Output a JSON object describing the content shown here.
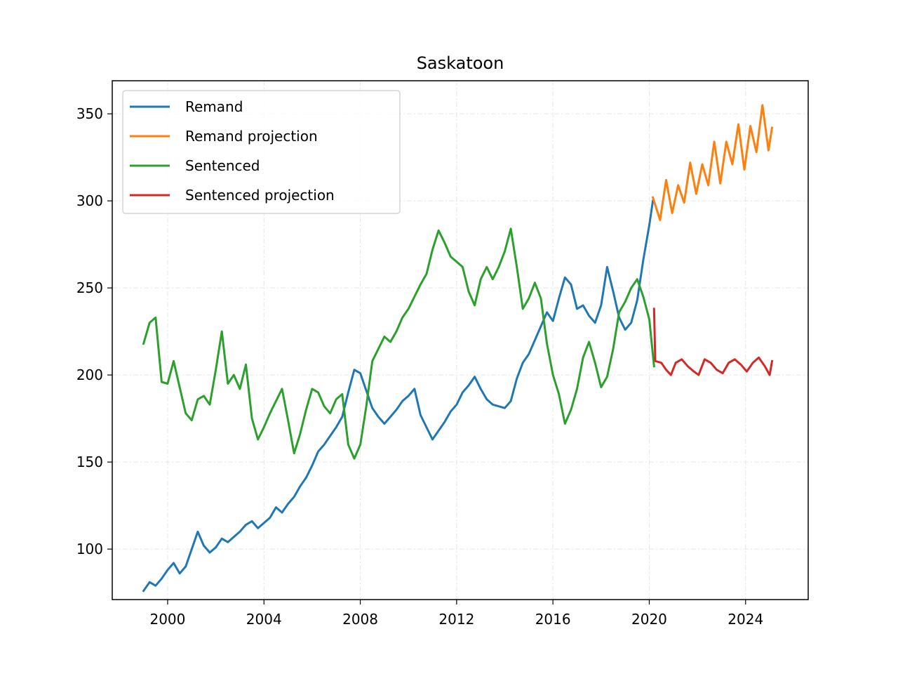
{
  "chart_data": {
    "type": "line",
    "title": "Saskatoon",
    "xlabel": "",
    "ylabel": "",
    "xlim": [
      1997.7,
      2026.6
    ],
    "ylim": [
      71.0,
      369.0
    ],
    "x_ticks": [
      2000,
      2004,
      2008,
      2012,
      2016,
      2020,
      2024
    ],
    "y_ticks": [
      100,
      150,
      200,
      250,
      300,
      350
    ],
    "grid": true,
    "legend_position": "top-left",
    "series": [
      {
        "name": "Remand",
        "color": "#1f77b4",
        "points": [
          [
            1999.0,
            76
          ],
          [
            1999.25,
            81
          ],
          [
            1999.5,
            79
          ],
          [
            1999.75,
            83
          ],
          [
            2000.0,
            88
          ],
          [
            2000.25,
            92
          ],
          [
            2000.5,
            86
          ],
          [
            2000.75,
            90
          ],
          [
            2001.0,
            100
          ],
          [
            2001.25,
            110
          ],
          [
            2001.5,
            102
          ],
          [
            2001.75,
            98
          ],
          [
            2002.0,
            101
          ],
          [
            2002.25,
            106
          ],
          [
            2002.5,
            104
          ],
          [
            2002.75,
            107
          ],
          [
            2003.0,
            110
          ],
          [
            2003.25,
            114
          ],
          [
            2003.5,
            116
          ],
          [
            2003.75,
            112
          ],
          [
            2004.0,
            115
          ],
          [
            2004.25,
            118
          ],
          [
            2004.5,
            124
          ],
          [
            2004.75,
            121
          ],
          [
            2005.0,
            126
          ],
          [
            2005.25,
            130
          ],
          [
            2005.5,
            136
          ],
          [
            2005.75,
            141
          ],
          [
            2006.0,
            148
          ],
          [
            2006.25,
            156
          ],
          [
            2006.5,
            160
          ],
          [
            2006.75,
            165
          ],
          [
            2007.0,
            170
          ],
          [
            2007.25,
            176
          ],
          [
            2007.5,
            190
          ],
          [
            2007.75,
            203
          ],
          [
            2008.0,
            201
          ],
          [
            2008.25,
            191
          ],
          [
            2008.5,
            181
          ],
          [
            2008.75,
            176
          ],
          [
            2009.0,
            172
          ],
          [
            2009.25,
            176
          ],
          [
            2009.5,
            180
          ],
          [
            2009.75,
            185
          ],
          [
            2010.0,
            188
          ],
          [
            2010.25,
            192
          ],
          [
            2010.5,
            177
          ],
          [
            2010.75,
            170
          ],
          [
            2011.0,
            163
          ],
          [
            2011.25,
            168
          ],
          [
            2011.5,
            173
          ],
          [
            2011.75,
            179
          ],
          [
            2012.0,
            183
          ],
          [
            2012.25,
            190
          ],
          [
            2012.5,
            194
          ],
          [
            2012.75,
            199
          ],
          [
            2013.0,
            192
          ],
          [
            2013.25,
            186
          ],
          [
            2013.5,
            183
          ],
          [
            2013.75,
            182
          ],
          [
            2014.0,
            181
          ],
          [
            2014.25,
            185
          ],
          [
            2014.5,
            198
          ],
          [
            2014.75,
            207
          ],
          [
            2015.0,
            212
          ],
          [
            2015.25,
            220
          ],
          [
            2015.5,
            228
          ],
          [
            2015.75,
            236
          ],
          [
            2016.0,
            231
          ],
          [
            2016.25,
            244
          ],
          [
            2016.5,
            256
          ],
          [
            2016.75,
            252
          ],
          [
            2017.0,
            238
          ],
          [
            2017.25,
            240
          ],
          [
            2017.5,
            234
          ],
          [
            2017.75,
            230
          ],
          [
            2018.0,
            240
          ],
          [
            2018.25,
            262
          ],
          [
            2018.5,
            248
          ],
          [
            2018.75,
            233
          ],
          [
            2019.0,
            226
          ],
          [
            2019.25,
            230
          ],
          [
            2019.5,
            243
          ],
          [
            2019.75,
            266
          ],
          [
            2020.0,
            286
          ],
          [
            2020.15,
            300
          ]
        ]
      },
      {
        "name": "Remand projection",
        "color": "#ff7f0e",
        "points": [
          [
            2020.15,
            302
          ],
          [
            2020.45,
            289
          ],
          [
            2020.7,
            312
          ],
          [
            2020.95,
            293
          ],
          [
            2021.2,
            309
          ],
          [
            2021.45,
            299
          ],
          [
            2021.7,
            322
          ],
          [
            2021.95,
            304
          ],
          [
            2022.2,
            321
          ],
          [
            2022.45,
            309
          ],
          [
            2022.7,
            334
          ],
          [
            2022.95,
            310
          ],
          [
            2023.2,
            334
          ],
          [
            2023.45,
            321
          ],
          [
            2023.7,
            344
          ],
          [
            2023.95,
            318
          ],
          [
            2024.2,
            343
          ],
          [
            2024.45,
            328
          ],
          [
            2024.7,
            355
          ],
          [
            2024.95,
            329
          ],
          [
            2025.1,
            342
          ]
        ]
      },
      {
        "name": "Sentenced",
        "color": "#2ca02c",
        "points": [
          [
            1999.0,
            218
          ],
          [
            1999.25,
            230
          ],
          [
            1999.5,
            233
          ],
          [
            1999.75,
            196
          ],
          [
            2000.0,
            195
          ],
          [
            2000.25,
            208
          ],
          [
            2000.5,
            193
          ],
          [
            2000.75,
            178
          ],
          [
            2001.0,
            174
          ],
          [
            2001.25,
            186
          ],
          [
            2001.5,
            188
          ],
          [
            2001.75,
            183
          ],
          [
            2002.0,
            203
          ],
          [
            2002.25,
            225
          ],
          [
            2002.5,
            195
          ],
          [
            2002.75,
            200
          ],
          [
            2003.0,
            192
          ],
          [
            2003.25,
            206
          ],
          [
            2003.5,
            175
          ],
          [
            2003.75,
            163
          ],
          [
            2004.0,
            170
          ],
          [
            2004.25,
            178
          ],
          [
            2004.5,
            185
          ],
          [
            2004.75,
            192
          ],
          [
            2005.0,
            174
          ],
          [
            2005.25,
            155
          ],
          [
            2005.5,
            166
          ],
          [
            2005.75,
            180
          ],
          [
            2006.0,
            192
          ],
          [
            2006.25,
            190
          ],
          [
            2006.5,
            182
          ],
          [
            2006.75,
            178
          ],
          [
            2007.0,
            186
          ],
          [
            2007.25,
            189
          ],
          [
            2007.5,
            160
          ],
          [
            2007.75,
            152
          ],
          [
            2008.0,
            160
          ],
          [
            2008.25,
            182
          ],
          [
            2008.5,
            208
          ],
          [
            2008.75,
            215
          ],
          [
            2009.0,
            222
          ],
          [
            2009.25,
            219
          ],
          [
            2009.5,
            225
          ],
          [
            2009.75,
            233
          ],
          [
            2010.0,
            238
          ],
          [
            2010.25,
            245
          ],
          [
            2010.5,
            252
          ],
          [
            2010.75,
            258
          ],
          [
            2011.0,
            272
          ],
          [
            2011.25,
            283
          ],
          [
            2011.5,
            276
          ],
          [
            2011.75,
            268
          ],
          [
            2012.0,
            265
          ],
          [
            2012.25,
            262
          ],
          [
            2012.5,
            248
          ],
          [
            2012.75,
            240
          ],
          [
            2013.0,
            255
          ],
          [
            2013.25,
            262
          ],
          [
            2013.5,
            255
          ],
          [
            2013.75,
            262
          ],
          [
            2014.0,
            271
          ],
          [
            2014.25,
            284
          ],
          [
            2014.5,
            262
          ],
          [
            2014.75,
            238
          ],
          [
            2015.0,
            244
          ],
          [
            2015.25,
            253
          ],
          [
            2015.5,
            244
          ],
          [
            2015.75,
            218
          ],
          [
            2016.0,
            200
          ],
          [
            2016.25,
            189
          ],
          [
            2016.5,
            172
          ],
          [
            2016.75,
            180
          ],
          [
            2017.0,
            192
          ],
          [
            2017.25,
            210
          ],
          [
            2017.5,
            219
          ],
          [
            2017.75,
            207
          ],
          [
            2018.0,
            193
          ],
          [
            2018.25,
            199
          ],
          [
            2018.5,
            215
          ],
          [
            2018.75,
            236
          ],
          [
            2019.0,
            242
          ],
          [
            2019.25,
            250
          ],
          [
            2019.5,
            255
          ],
          [
            2019.75,
            245
          ],
          [
            2020.0,
            232
          ],
          [
            2020.2,
            205
          ]
        ]
      },
      {
        "name": "Sentenced projection",
        "color": "#d62728",
        "points": [
          [
            2020.2,
            238
          ],
          [
            2020.25,
            208
          ],
          [
            2020.5,
            207
          ],
          [
            2020.7,
            203
          ],
          [
            2020.9,
            200
          ],
          [
            2021.1,
            207
          ],
          [
            2021.35,
            209
          ],
          [
            2021.6,
            205
          ],
          [
            2021.85,
            202
          ],
          [
            2022.05,
            200
          ],
          [
            2022.3,
            209
          ],
          [
            2022.55,
            207
          ],
          [
            2022.8,
            203
          ],
          [
            2023.05,
            201
          ],
          [
            2023.3,
            207
          ],
          [
            2023.55,
            209
          ],
          [
            2023.8,
            206
          ],
          [
            2024.05,
            202
          ],
          [
            2024.3,
            207
          ],
          [
            2024.55,
            210
          ],
          [
            2024.8,
            205
          ],
          [
            2025.0,
            200
          ],
          [
            2025.1,
            208
          ]
        ]
      }
    ]
  }
}
